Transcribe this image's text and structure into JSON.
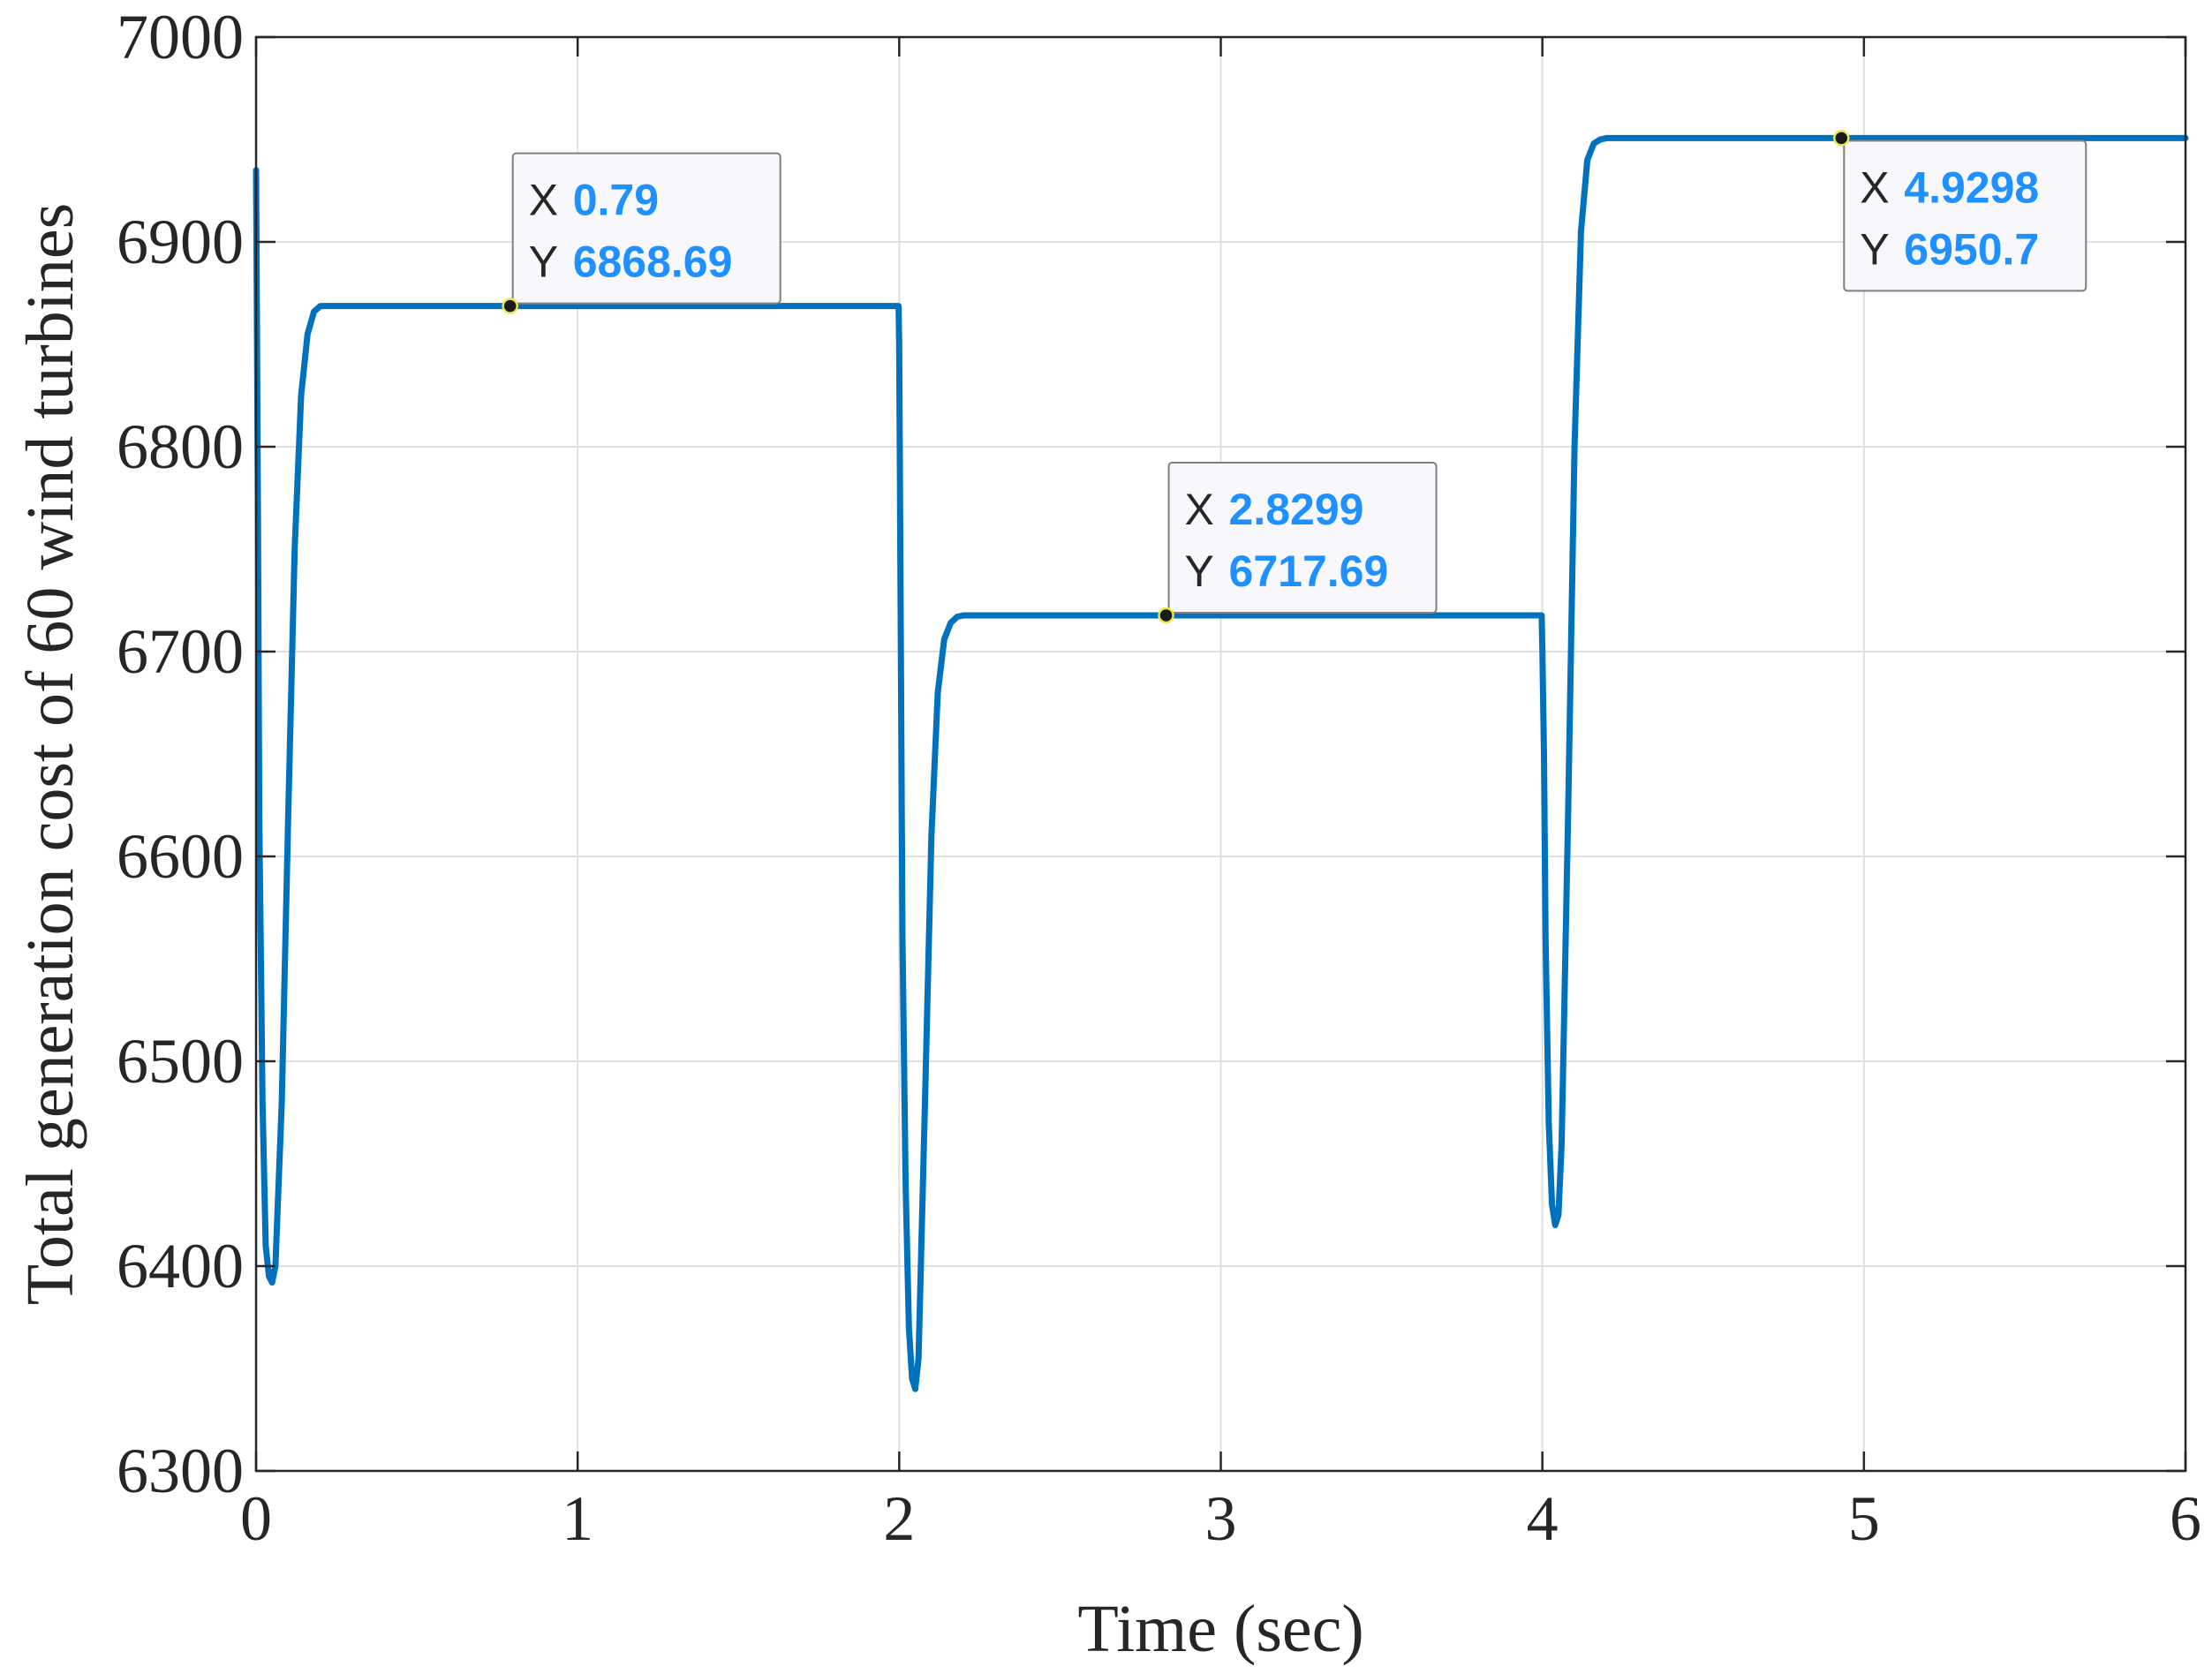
{
  "chart_data": {
    "type": "line",
    "xlabel": "Time (sec)",
    "ylabel": "Total generation cost of 60 wind turbines",
    "xlim": [
      0,
      6
    ],
    "ylim": [
      6300,
      7000
    ],
    "xticks": [
      "0",
      "1",
      "2",
      "3",
      "4",
      "5",
      "6"
    ],
    "yticks": [
      "6300",
      "6400",
      "6500",
      "6600",
      "6700",
      "6800",
      "6900",
      "7000"
    ],
    "grid": true,
    "line_color": "#0072BD",
    "series": [
      {
        "name": "Total generation cost",
        "x": [
          0,
          0.003,
          0.006,
          0.01,
          0.02,
          0.03,
          0.04,
          0.05,
          0.06,
          0.08,
          0.1,
          0.12,
          0.14,
          0.16,
          0.18,
          0.2,
          0.3,
          0.79,
          1.5,
          1.998,
          2.0,
          2.005,
          2.01,
          2.02,
          2.03,
          2.04,
          2.05,
          2.06,
          2.08,
          2.1,
          2.12,
          2.14,
          2.16,
          2.18,
          2.2,
          2.3,
          2.8299,
          3.5,
          3.998,
          4.0,
          4.005,
          4.01,
          4.02,
          4.03,
          4.04,
          4.05,
          4.06,
          4.08,
          4.1,
          4.12,
          4.14,
          4.16,
          4.18,
          4.2,
          4.3,
          4.9298,
          5.5,
          6.0
        ],
        "y": [
          6935,
          6850,
          6760,
          6620,
          6480,
          6410,
          6395,
          6392,
          6400,
          6480,
          6620,
          6750,
          6825,
          6855,
          6866,
          6868.69,
          6868.69,
          6868.69,
          6868.69,
          6868.69,
          6850,
          6700,
          6560,
          6440,
          6370,
          6345,
          6340,
          6355,
          6480,
          6610,
          6680,
          6706,
          6714,
          6717,
          6717.69,
          6717.69,
          6717.69,
          6717.69,
          6717.69,
          6700,
          6650,
          6560,
          6470,
          6430,
          6420,
          6425,
          6460,
          6620,
          6800,
          6905,
          6940,
          6948,
          6950,
          6950.7,
          6950.7,
          6950.7,
          6950.7,
          6950.7
        ]
      }
    ],
    "datatips": [
      {
        "x": 0.79,
        "y": 6868.69,
        "x_label": "X",
        "y_label": "Y",
        "x_text": "0.79",
        "y_text": "6868.69",
        "placement": "upper-right"
      },
      {
        "x": 2.8299,
        "y": 6717.69,
        "x_label": "X",
        "y_label": "Y",
        "x_text": "2.8299",
        "y_text": "6717.69",
        "placement": "upper-right"
      },
      {
        "x": 4.9298,
        "y": 6950.7,
        "x_label": "X",
        "y_label": "Y",
        "x_text": "4.9298",
        "y_text": "6950.7",
        "placement": "lower-right"
      }
    ],
    "datatip_value_color": "#1E90FF"
  }
}
